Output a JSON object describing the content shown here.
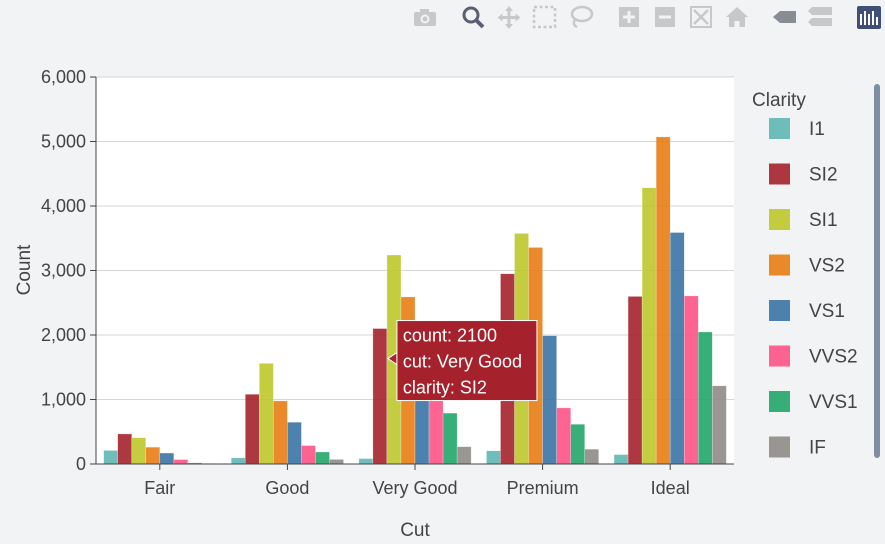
{
  "modebar": {
    "buttons": [
      {
        "name": "camera-icon",
        "label": "Download plot as a png"
      },
      {
        "name": "zoom-icon",
        "label": "Zoom"
      },
      {
        "name": "pan-icon",
        "label": "Pan"
      },
      {
        "name": "box-select-icon",
        "label": "Box Select"
      },
      {
        "name": "lasso-select-icon",
        "label": "Lasso Select"
      },
      {
        "name": "zoom-in-icon",
        "label": "Zoom in"
      },
      {
        "name": "zoom-out-icon",
        "label": "Zoom out"
      },
      {
        "name": "autoscale-icon",
        "label": "Autoscale"
      },
      {
        "name": "home-icon",
        "label": "Reset axes"
      },
      {
        "name": "hover-closest-icon",
        "label": "Show closest data on hover"
      },
      {
        "name": "hover-compare-icon",
        "label": "Compare data on hover"
      },
      {
        "name": "plotly-logo-icon",
        "label": "Produced with Plotly"
      }
    ]
  },
  "chart_data": {
    "type": "bar",
    "barmode": "group",
    "title": "",
    "xlabel": "Cut",
    "ylabel": "Count",
    "ylim": [
      0,
      6000
    ],
    "yticks": [
      0,
      1000,
      2000,
      3000,
      4000,
      5000,
      6000
    ],
    "ytick_labels": [
      "0",
      "1,000",
      "2,000",
      "3,000",
      "4,000",
      "5,000",
      "6,000"
    ],
    "grid": true,
    "categories": [
      "Fair",
      "Good",
      "Very Good",
      "Premium",
      "Ideal"
    ],
    "legend": {
      "title": "Clarity",
      "placement": "right"
    },
    "series": [
      {
        "name": "I1",
        "color": "#5fb7b5",
        "values": [
          210,
          96,
          84,
          205,
          146
        ]
      },
      {
        "name": "SI2",
        "color": "#a5222c",
        "values": [
          466,
          1081,
          2100,
          2949,
          2598
        ]
      },
      {
        "name": "SI1",
        "color": "#bcc82a",
        "values": [
          408,
          1560,
          3240,
          3575,
          4282
        ]
      },
      {
        "name": "VS2",
        "color": "#e87d14",
        "values": [
          261,
          978,
          2591,
          3357,
          5071
        ]
      },
      {
        "name": "VS1",
        "color": "#3a74a6",
        "values": [
          170,
          648,
          1775,
          1989,
          3589
        ]
      },
      {
        "name": "VVS2",
        "color": "#fd5386",
        "values": [
          69,
          286,
          1235,
          870,
          2606
        ]
      },
      {
        "name": "VVS1",
        "color": "#22a56a",
        "values": [
          17,
          186,
          789,
          616,
          2047
        ]
      },
      {
        "name": "IF",
        "color": "#8f8b86",
        "values": [
          9,
          71,
          268,
          230,
          1212
        ]
      }
    ],
    "tooltip": {
      "lines": [
        "count: 2100",
        "cut: Very Good",
        "clarity: SI2"
      ],
      "series": "SI2",
      "category": "Very Good",
      "color": "#a5222c"
    }
  }
}
